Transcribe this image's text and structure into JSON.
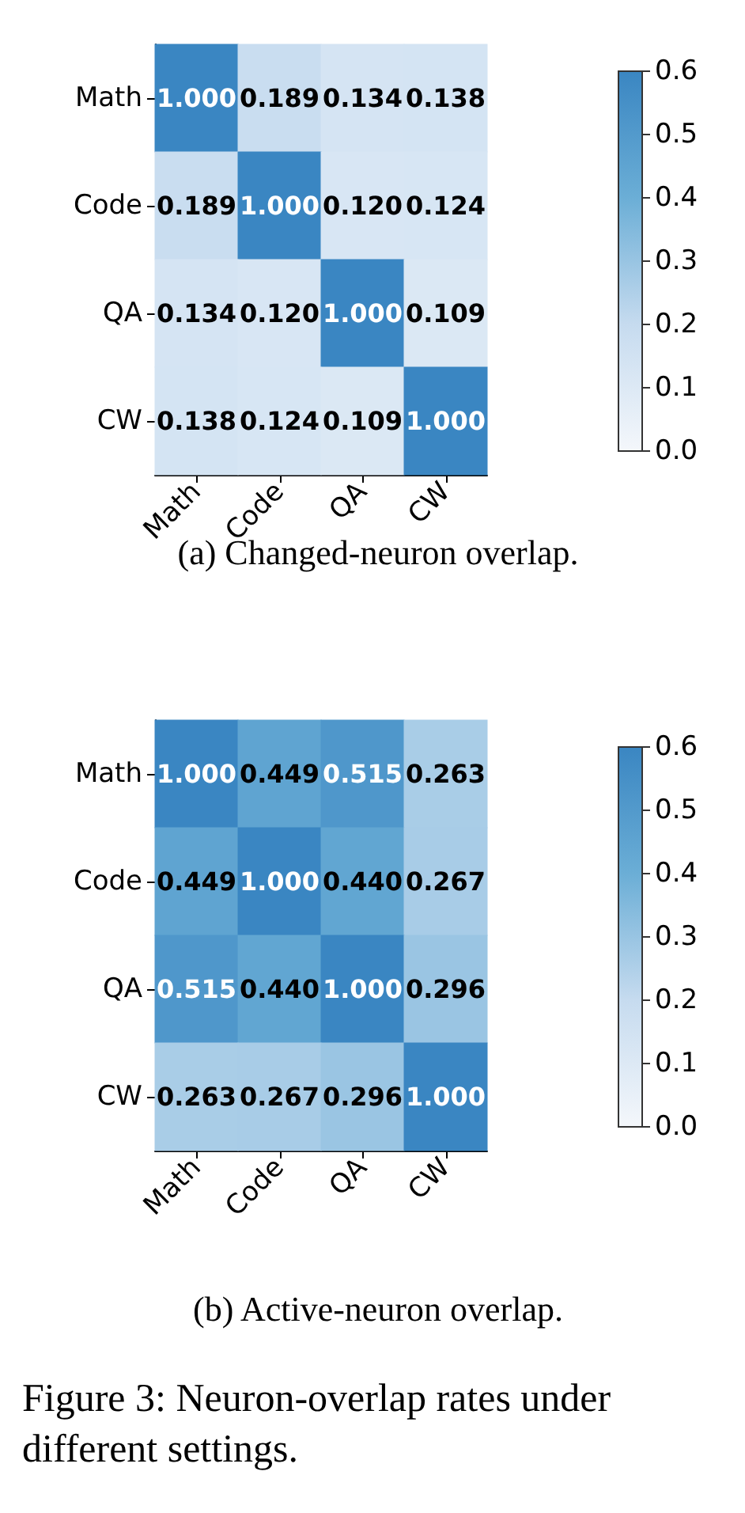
{
  "chart_data": [
    {
      "type": "heatmap",
      "categories": [
        "Math",
        "Code",
        "QA",
        "CW"
      ],
      "y_categories": [
        "Math",
        "Code",
        "QA",
        "CW"
      ],
      "cells": [
        [
          1.0,
          0.189,
          0.134,
          0.138
        ],
        [
          0.189,
          1.0,
          0.12,
          0.124
        ],
        [
          0.134,
          0.12,
          1.0,
          0.109
        ],
        [
          0.138,
          0.124,
          0.109,
          1.0
        ]
      ],
      "cell_labels": [
        [
          "1.000",
          "0.189",
          "0.134",
          "0.138"
        ],
        [
          "0.189",
          "1.000",
          "0.120",
          "0.124"
        ],
        [
          "0.134",
          "0.120",
          "1.000",
          "0.109"
        ],
        [
          "0.138",
          "0.124",
          "0.109",
          "1.000"
        ]
      ],
      "clim": [
        0,
        0.6
      ],
      "cticks": [
        {
          "value": 0,
          "label": "0.0"
        },
        0.1,
        0.2,
        0.3,
        0.4,
        0.5,
        0.6
      ],
      "annotations": [
        "(a) Changed-neuron overlap."
      ]
    },
    {
      "type": "heatmap",
      "categories": [
        "Math",
        "Code",
        "QA",
        "CW"
      ],
      "y_categories": [
        "Math",
        "Code",
        "QA",
        "CW"
      ],
      "cells": [
        [
          1.0,
          0.449,
          0.515,
          0.263
        ],
        [
          0.449,
          1.0,
          0.44,
          0.267
        ],
        [
          0.515,
          0.44,
          1.0,
          0.296
        ],
        [
          0.263,
          0.267,
          0.296,
          1.0
        ]
      ],
      "cell_labels": [
        [
          "1.000",
          "0.449",
          "0.515",
          "0.263"
        ],
        [
          "0.449",
          "1.000",
          "0.440",
          "0.267"
        ],
        [
          "0.515",
          "0.440",
          "1.000",
          "0.296"
        ],
        [
          "0.263",
          "0.267",
          "0.296",
          "1.000"
        ]
      ],
      "clim": [
        0,
        0.6
      ],
      "cticks": [
        {
          "value": 0,
          "label": "0.0"
        },
        0.1,
        0.2,
        0.3,
        0.4,
        0.5,
        0.6
      ],
      "annotations": [
        "(b) Active-neuron overlap.",
        "Figure 3: Neuron-overlap rates under different settings."
      ]
    }
  ]
}
